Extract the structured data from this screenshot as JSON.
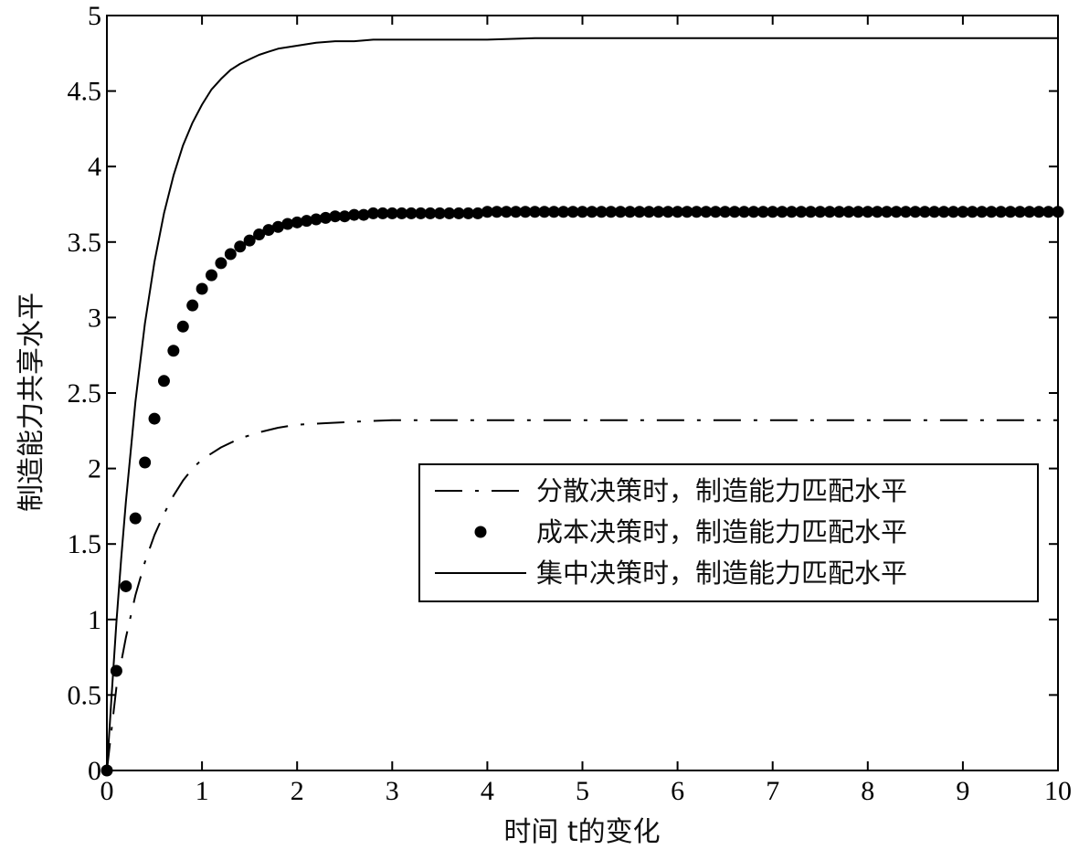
{
  "chart_data": {
    "type": "line",
    "title": "",
    "xlabel": "时间 t的变化",
    "ylabel": "制造能力共享水平",
    "xlim": [
      0,
      10
    ],
    "ylim": [
      0,
      5
    ],
    "xticks": [
      "0",
      "1",
      "2",
      "3",
      "4",
      "5",
      "6",
      "7",
      "8",
      "9",
      "10"
    ],
    "yticks": [
      "0",
      "0.5",
      "1",
      "1.5",
      "2",
      "2.5",
      "3",
      "3.5",
      "4",
      "4.5",
      "5"
    ],
    "grid": false,
    "legend_position": "center-right",
    "series": [
      {
        "name": "分散决策时，制造能力匹配水平",
        "style": "dash-dot",
        "color": "#000000",
        "x": [
          0,
          0.1,
          0.2,
          0.3,
          0.4,
          0.5,
          0.6,
          0.7,
          0.8,
          0.9,
          1.0,
          1.2,
          1.4,
          1.6,
          1.8,
          2.0,
          2.3,
          2.6,
          3.0,
          3.5,
          4,
          5,
          6,
          7,
          8,
          9,
          10
        ],
        "y": [
          0,
          0.55,
          0.88,
          1.16,
          1.38,
          1.56,
          1.7,
          1.82,
          1.92,
          2.0,
          2.06,
          2.14,
          2.2,
          2.24,
          2.27,
          2.29,
          2.3,
          2.31,
          2.32,
          2.32,
          2.32,
          2.32,
          2.32,
          2.32,
          2.32,
          2.32,
          2.32
        ]
      },
      {
        "name": "成本决策时，制造能力匹配水平",
        "style": "markers",
        "color": "#000000",
        "x": [
          0,
          0.1,
          0.2,
          0.3,
          0.4,
          0.5,
          0.6,
          0.7,
          0.8,
          0.9,
          1.0,
          1.1,
          1.2,
          1.3,
          1.4,
          1.5,
          1.6,
          1.7,
          1.8,
          1.9,
          2.0,
          2.1,
          2.2,
          2.3,
          2.4,
          2.5,
          2.6,
          2.7,
          2.8,
          2.9,
          3.0,
          3.1,
          3.2,
          3.3,
          3.4,
          3.5,
          3.6,
          3.7,
          3.8,
          3.9,
          4.0,
          4.1,
          4.2,
          4.3,
          4.4,
          4.5,
          4.6,
          4.7,
          4.8,
          4.9,
          5.0,
          5.1,
          5.2,
          5.3,
          5.4,
          5.5,
          5.6,
          5.7,
          5.8,
          5.9,
          6.0,
          6.1,
          6.2,
          6.3,
          6.4,
          6.5,
          6.6,
          6.7,
          6.8,
          6.9,
          7.0,
          7.1,
          7.2,
          7.3,
          7.4,
          7.5,
          7.6,
          7.7,
          7.8,
          7.9,
          8.0,
          8.1,
          8.2,
          8.3,
          8.4,
          8.5,
          8.6,
          8.7,
          8.8,
          8.9,
          9.0,
          9.1,
          9.2,
          9.3,
          9.4,
          9.5,
          9.6,
          9.7,
          9.8,
          9.9,
          10.0
        ],
        "y": [
          0.0,
          0.66,
          1.22,
          1.67,
          2.04,
          2.33,
          2.58,
          2.78,
          2.94,
          3.08,
          3.19,
          3.28,
          3.36,
          3.42,
          3.47,
          3.51,
          3.55,
          3.58,
          3.6,
          3.62,
          3.63,
          3.64,
          3.65,
          3.66,
          3.67,
          3.67,
          3.68,
          3.68,
          3.69,
          3.69,
          3.69,
          3.69,
          3.69,
          3.69,
          3.69,
          3.69,
          3.69,
          3.69,
          3.69,
          3.69,
          3.7,
          3.7,
          3.7,
          3.7,
          3.7,
          3.7,
          3.7,
          3.7,
          3.7,
          3.7,
          3.7,
          3.7,
          3.7,
          3.7,
          3.7,
          3.7,
          3.7,
          3.7,
          3.7,
          3.7,
          3.7,
          3.7,
          3.7,
          3.7,
          3.7,
          3.7,
          3.7,
          3.7,
          3.7,
          3.7,
          3.7,
          3.7,
          3.7,
          3.7,
          3.7,
          3.7,
          3.7,
          3.7,
          3.7,
          3.7,
          3.7,
          3.7,
          3.7,
          3.7,
          3.7,
          3.7,
          3.7,
          3.7,
          3.7,
          3.7,
          3.7,
          3.7,
          3.7,
          3.7,
          3.7,
          3.7,
          3.7,
          3.7,
          3.7,
          3.7,
          3.7
        ]
      },
      {
        "name": "集中决策时，制造能力匹配水平",
        "style": "solid",
        "color": "#000000",
        "x": [
          0,
          0.05,
          0.1,
          0.15,
          0.2,
          0.3,
          0.4,
          0.5,
          0.6,
          0.7,
          0.8,
          0.9,
          1.0,
          1.1,
          1.2,
          1.3,
          1.4,
          1.5,
          1.6,
          1.7,
          1.8,
          2.0,
          2.2,
          2.4,
          2.6,
          2.8,
          3.0,
          3.5,
          4.0,
          4.5,
          5,
          6,
          7,
          8,
          9,
          10
        ],
        "y": [
          0,
          0.5,
          0.98,
          1.4,
          1.78,
          2.44,
          2.96,
          3.37,
          3.69,
          3.94,
          4.14,
          4.29,
          4.41,
          4.51,
          4.58,
          4.64,
          4.68,
          4.71,
          4.74,
          4.76,
          4.78,
          4.8,
          4.82,
          4.83,
          4.83,
          4.84,
          4.84,
          4.84,
          4.84,
          4.85,
          4.85,
          4.85,
          4.85,
          4.85,
          4.85,
          4.85
        ]
      }
    ]
  }
}
